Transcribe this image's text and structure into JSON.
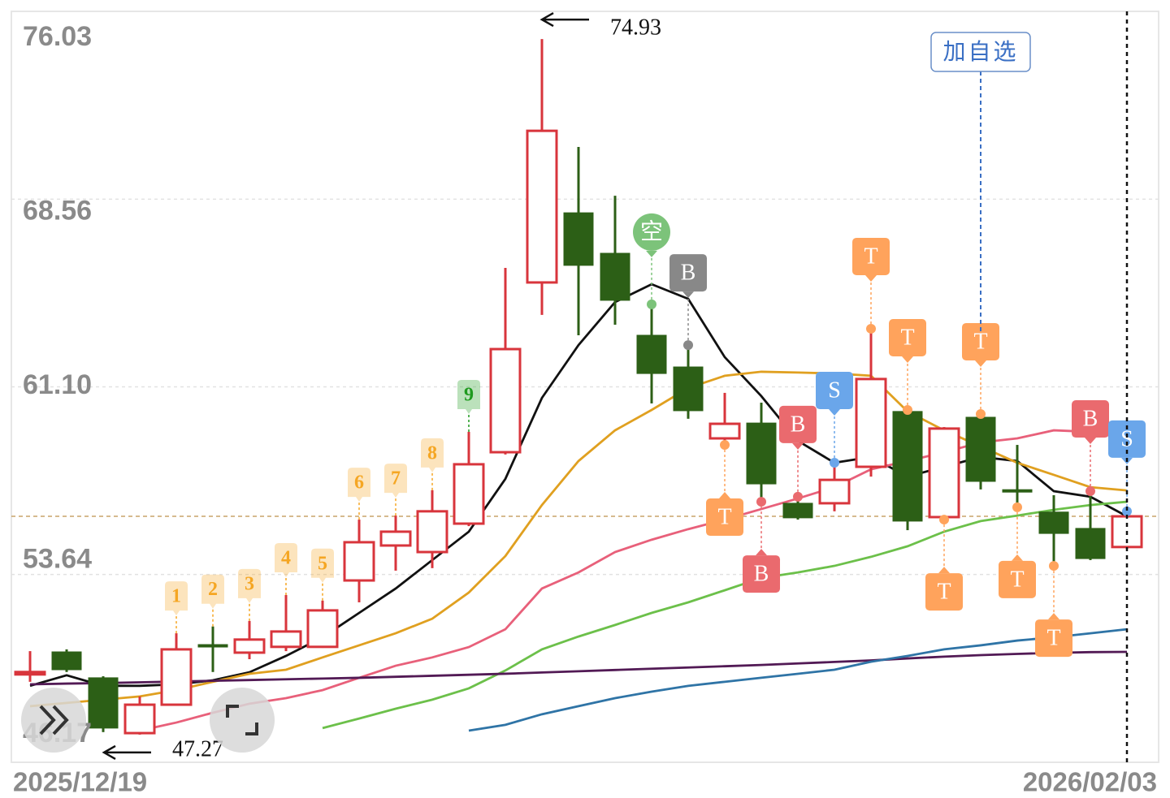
{
  "chart_data": {
    "type": "candlestick",
    "categories": [
      "2025/12/19",
      null,
      null,
      null,
      null,
      null,
      null,
      null,
      null,
      null,
      null,
      null,
      null,
      null,
      null,
      null,
      null,
      null,
      null,
      null,
      null,
      null,
      null,
      null,
      null,
      null,
      null,
      null,
      null,
      null,
      "2026/02/03"
    ],
    "candles": {
      "open": [
        49.74,
        50.56,
        49.53,
        47.33,
        48.46,
        50.85,
        50.53,
        50.76,
        50.76,
        53.4,
        54.79,
        54.53,
        55.66,
        58.5,
        65.25,
        68.02,
        66.41,
        63.15,
        61.89,
        59.05,
        59.66,
        56.47,
        56.47,
        57.92,
        60.12,
        55.92,
        59.89,
        57.01,
        56.12,
        55.47,
        54.73
      ],
      "high": [
        50.59,
        50.66,
        49.59,
        48.79,
        51.3,
        51.57,
        51.79,
        52.82,
        52.6,
        55.82,
        55.98,
        56.99,
        59.31,
        65.83,
        74.93,
        70.64,
        68.7,
        64.38,
        62.76,
        60.86,
        60.47,
        56.73,
        58.08,
        63.41,
        60.18,
        59.5,
        60.02,
        58.79,
        56.79,
        56.95,
        56.15
      ],
      "low": [
        49.37,
        49.76,
        47.37,
        47.27,
        48.46,
        49.76,
        50.27,
        50.59,
        50.72,
        52.53,
        53.79,
        53.89,
        55.56,
        58.41,
        63.96,
        63.15,
        63.57,
        60.44,
        59.83,
        58.79,
        56.53,
        55.82,
        56.15,
        57.53,
        55.4,
        55.82,
        57.02,
        56.31,
        53.98,
        54.21,
        54.66
      ],
      "close": [
        49.76,
        49.85,
        47.53,
        48.46,
        50.66,
        50.82,
        51.05,
        51.37,
        52.21,
        54.92,
        55.34,
        56.15,
        58.02,
        62.6,
        71.28,
        65.93,
        64.54,
        61.63,
        60.15,
        59.63,
        57.24,
        55.89,
        57.4,
        61.41,
        55.76,
        59.44,
        57.34,
        56.99,
        55.27,
        54.27,
        55.95
      ],
      "up_color": "#d8353c",
      "down_color": "#2c5f16"
    },
    "series": [
      {
        "color": "#111111",
        "values": [
          49.21,
          49.63,
          49.21,
          49.21,
          49.27,
          49.43,
          49.75,
          50.4,
          51.14,
          52.11,
          53.08,
          54.21,
          55.34,
          57.44,
          60.66,
          62.76,
          64.47,
          65.18,
          64.6,
          62.28,
          60.73,
          58.95,
          58.08,
          58.31,
          57.53,
          57.92,
          58.31,
          58.15,
          56.95,
          56.73,
          55.95
        ]
      },
      {
        "color": "#e0a020",
        "values": [
          48.4,
          48.53,
          48.66,
          48.79,
          49.04,
          49.37,
          49.69,
          49.85,
          50.34,
          50.82,
          51.3,
          51.88,
          52.92,
          54.37,
          56.4,
          58.15,
          59.37,
          60.18,
          61.05,
          61.54,
          61.7,
          61.67,
          61.63,
          61.54,
          60.12,
          59.37,
          58.73,
          58.08,
          57.6,
          57.11,
          56.98
        ]
      },
      {
        "color": "#e8607a",
        "values": [
          null,
          null,
          null,
          47.43,
          47.75,
          48.14,
          48.5,
          48.72,
          49.04,
          49.53,
          50.01,
          50.34,
          50.75,
          51.46,
          53.08,
          53.72,
          54.53,
          55.02,
          55.44,
          55.82,
          56.24,
          56.66,
          57.11,
          57.82,
          58.15,
          58.5,
          58.89,
          59.05,
          59.37,
          59.31,
          59.31
        ]
      },
      {
        "color": "#6cc04a",
        "values": [
          null,
          null,
          null,
          null,
          null,
          null,
          null,
          null,
          47.53,
          47.91,
          48.3,
          48.66,
          49.11,
          49.82,
          50.66,
          51.17,
          51.63,
          52.11,
          52.53,
          53.01,
          53.5,
          53.72,
          53.98,
          54.34,
          54.76,
          55.34,
          55.76,
          55.98,
          56.21,
          56.4,
          56.53
        ]
      },
      {
        "color": "#521a55",
        "values": [
          49.27,
          49.3,
          49.32,
          49.35,
          49.38,
          49.41,
          49.44,
          49.47,
          49.5,
          49.53,
          49.57,
          49.61,
          49.65,
          49.69,
          49.74,
          49.79,
          49.84,
          49.89,
          49.94,
          49.99,
          50.04,
          50.1,
          50.16,
          50.22,
          50.3,
          50.37,
          50.43,
          50.48,
          50.52,
          50.55,
          50.56
        ]
      },
      {
        "color": "#2f74a6",
        "values": [
          null,
          null,
          null,
          null,
          null,
          null,
          null,
          null,
          null,
          null,
          null,
          null,
          47.43,
          47.66,
          48.08,
          48.4,
          48.72,
          48.98,
          49.21,
          49.37,
          49.53,
          49.69,
          49.85,
          50.17,
          50.4,
          50.66,
          50.82,
          51.01,
          51.14,
          51.3,
          51.46
        ]
      }
    ],
    "ylim": [
      46.17,
      76.03
    ],
    "yticks": [
      76.03,
      68.56,
      {
        "value": 61.1,
        "label": "61.10"
      },
      53.64,
      46.17
    ],
    "grid": true,
    "high_label": 74.93,
    "low_label": 47.27,
    "markers": [
      {
        "label": "1",
        "candle": 4,
        "side": "above",
        "color": "#f5a623"
      },
      {
        "label": "2",
        "candle": 5,
        "side": "above",
        "color": "#f5a623"
      },
      {
        "label": "3",
        "candle": 6,
        "side": "above",
        "color": "#f5a623"
      },
      {
        "label": "4",
        "candle": 7,
        "side": "above",
        "color": "#f5a623"
      },
      {
        "label": "5",
        "candle": 8,
        "side": "above",
        "color": "#f5a623"
      },
      {
        "label": "6",
        "candle": 9,
        "side": "above",
        "color": "#f5a623"
      },
      {
        "label": "7",
        "candle": 10,
        "side": "above",
        "color": "#f5a623"
      },
      {
        "label": "8",
        "candle": 11,
        "side": "above",
        "color": "#f5a623"
      },
      {
        "label": "9",
        "candle": 12,
        "side": "above",
        "color": "#1f9a1f"
      },
      {
        "label": "空",
        "candle": 17,
        "side": "above",
        "color": "#7cc37a"
      },
      {
        "label": "B",
        "candle": 18,
        "side": "above",
        "color": "#888888"
      },
      {
        "label": "T",
        "candle": 19,
        "side": "below",
        "color": "#ffa35c"
      },
      {
        "label": "B",
        "candle": 20,
        "side": "below",
        "color": "#ea6a6e"
      },
      {
        "label": "B",
        "candle": 21,
        "side": "above",
        "color": "#ea6a6e"
      },
      {
        "label": "S",
        "candle": 22,
        "side": "above",
        "color": "#6aa6ea"
      },
      {
        "label": "T",
        "candle": 23,
        "side": "above",
        "color": "#ffa35c"
      },
      {
        "label": "T",
        "candle": 24,
        "side": "above",
        "color": "#ffa35c"
      },
      {
        "label": "T",
        "candle": 25,
        "side": "below",
        "color": "#ffa35c"
      },
      {
        "label": "T",
        "candle": 26,
        "side": "above",
        "color": "#ffa35c"
      },
      {
        "label": "T",
        "candle": 27,
        "side": "below",
        "color": "#ffa35c"
      },
      {
        "label": "T",
        "candle": 28,
        "side": "below",
        "color": "#ffa35c"
      },
      {
        "label": "B",
        "candle": 29,
        "side": "above",
        "color": "#ea6a6e"
      },
      {
        "label": "S",
        "candle": 30,
        "side": "above",
        "color": "#6aa6ea"
      }
    ],
    "watch_button": "加自选"
  }
}
